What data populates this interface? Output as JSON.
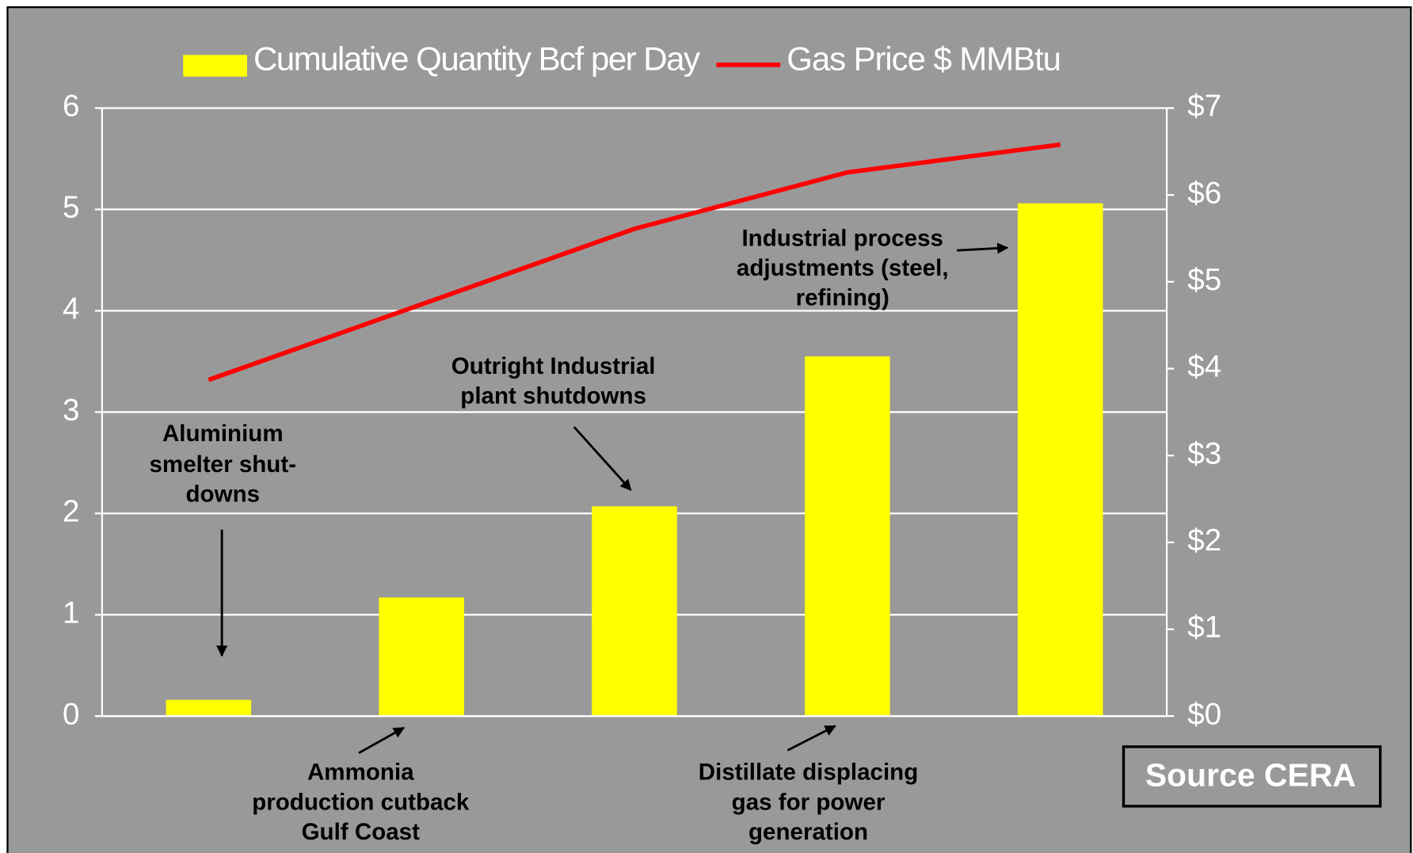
{
  "chart_data": {
    "type": "bar_line",
    "categories": [
      null,
      null,
      null,
      null,
      null
    ],
    "series": [
      {
        "name": "Cumulative Quantity Bcf per Day",
        "type": "bar",
        "color": "#ffff00",
        "values": [
          0.16,
          1.17,
          2.07,
          3.55,
          5.06
        ]
      },
      {
        "name": "Gas Price $ MMBtu",
        "type": "line",
        "axis": "y2",
        "color": "#ff0000",
        "values": [
          3.87,
          4.74,
          5.61,
          6.26,
          6.58
        ]
      }
    ],
    "ylim": [
      0,
      6
    ],
    "yticks": [
      0,
      1,
      2,
      3,
      4,
      5,
      6
    ],
    "y2lim": [
      0,
      7
    ],
    "y2ticks": [
      {
        "value": 0,
        "label": "$0"
      },
      {
        "value": 1,
        "label": "$1"
      },
      {
        "value": 2,
        "label": "$2"
      },
      {
        "value": 3,
        "label": "$3"
      },
      {
        "value": 4,
        "label": "$4"
      },
      {
        "value": 5,
        "label": "$5"
      },
      {
        "value": 6,
        "label": "$6"
      },
      {
        "value": 7,
        "label": "$7"
      }
    ],
    "grid": true,
    "legend": "top",
    "annotations": [
      [
        "Aluminium",
        "smelter shut-",
        "downs"
      ],
      [
        "Outright Industrial",
        "plant shutdowns"
      ],
      [
        "Industrial process",
        "adjustments (steel,",
        "refining)"
      ],
      [
        "Ammonia",
        "production cutback",
        "Gulf Coast"
      ],
      [
        "Distillate displacing",
        "gas for power",
        "generation"
      ]
    ],
    "source": "Source CERA"
  }
}
